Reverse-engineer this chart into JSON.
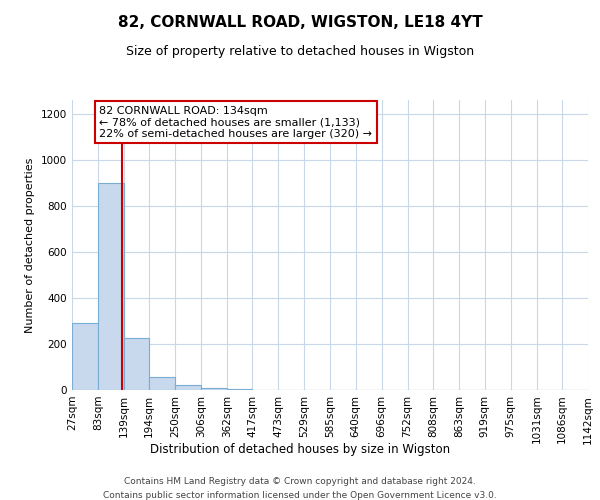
{
  "title": "82, CORNWALL ROAD, WIGSTON, LE18 4YT",
  "subtitle": "Size of property relative to detached houses in Wigston",
  "xlabel": "Distribution of detached houses by size in Wigston",
  "ylabel": "Number of detached properties",
  "footnote1": "Contains HM Land Registry data © Crown copyright and database right 2024.",
  "footnote2": "Contains public sector information licensed under the Open Government Licence v3.0.",
  "bin_edges": [
    27,
    83,
    139,
    194,
    250,
    306,
    362,
    417,
    473,
    529,
    585,
    640,
    696,
    752,
    808,
    863,
    919,
    975,
    1031,
    1086,
    1142
  ],
  "bin_counts": [
    290,
    900,
    225,
    55,
    20,
    8,
    3,
    2,
    1,
    1,
    1,
    0,
    0,
    1,
    0,
    0,
    0,
    0,
    0,
    0
  ],
  "bar_color": "#c8d9ee",
  "bar_edge_color": "#7aadd4",
  "property_size": 134,
  "vline_color": "#cc0000",
  "annotation_line1": "82 CORNWALL ROAD: 134sqm",
  "annotation_line2": "← 78% of detached houses are smaller (1,133)",
  "annotation_line3": "22% of semi-detached houses are larger (320) →",
  "annotation_box_color": "#ffffff",
  "annotation_box_edge_color": "#cc0000",
  "ylim": [
    0,
    1260
  ],
  "yticks": [
    0,
    200,
    400,
    600,
    800,
    1000,
    1200
  ],
  "background_color": "#ffffff",
  "grid_color": "#c8d8e8",
  "title_fontsize": 11,
  "subtitle_fontsize": 9,
  "ylabel_fontsize": 8,
  "xlabel_fontsize": 8.5,
  "tick_fontsize": 7.5,
  "annot_fontsize": 8
}
